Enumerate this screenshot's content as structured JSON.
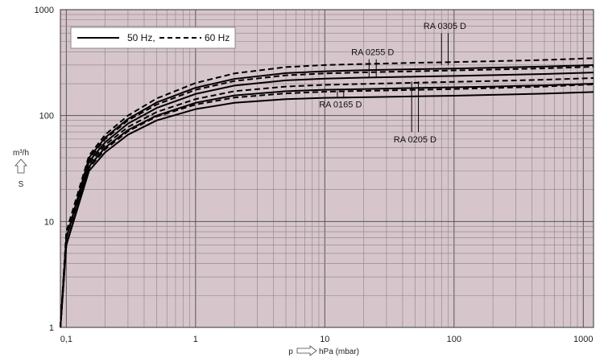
{
  "chart_data": {
    "type": "line",
    "title": "",
    "xlabel": "p",
    "xunit": "hPa (mbar)",
    "ylabel": "S",
    "yunit": "m³/h",
    "xscale": "log",
    "yscale": "log",
    "xlim": [
      0.09,
      1200
    ],
    "ylim": [
      1,
      1000
    ],
    "x_ticks": [
      {
        "value": 0.1,
        "label": "0,1"
      },
      {
        "value": 1,
        "label": "1"
      },
      {
        "value": 10,
        "label": "10"
      },
      {
        "value": 100,
        "label": "100"
      },
      {
        "value": 1000,
        "label": "1000"
      }
    ],
    "y_ticks": [
      {
        "value": 1,
        "label": "1"
      },
      {
        "value": 10,
        "label": "10"
      },
      {
        "value": 100,
        "label": "100"
      },
      {
        "value": 1000,
        "label": "1000"
      }
    ],
    "grid": true,
    "background": "#d6c6cb",
    "legend": {
      "position": "top-left",
      "entries": [
        {
          "label": "50 Hz,",
          "style": "solid"
        },
        {
          "label": "60 Hz",
          "style": "dashed"
        }
      ]
    },
    "series": [
      {
        "name": "RA 0165 D 50 Hz",
        "style": "solid",
        "x": [
          0.09,
          0.1,
          0.15,
          0.2,
          0.3,
          0.5,
          1,
          2,
          5,
          10,
          20,
          50,
          100,
          200,
          500,
          1200
        ],
        "y": [
          1,
          6,
          30,
          45,
          66,
          90,
          115,
          132,
          143,
          147,
          149,
          152,
          154,
          157,
          161,
          167
        ]
      },
      {
        "name": "RA 0165 D 60 Hz",
        "style": "dashed",
        "x": [
          0.09,
          0.1,
          0.15,
          0.2,
          0.3,
          0.5,
          1,
          2,
          5,
          10,
          20,
          50,
          100,
          200,
          500,
          1200
        ],
        "y": [
          1,
          6,
          32,
          48,
          71,
          98,
          127,
          148,
          162,
          168,
          171,
          175,
          178,
          182,
          188,
          197
        ]
      },
      {
        "name": "RA 0205 D 50 Hz",
        "style": "solid",
        "x": [
          0.09,
          0.1,
          0.15,
          0.2,
          0.3,
          0.5,
          1,
          2,
          5,
          10,
          20,
          50,
          100,
          200,
          500,
          1200
        ],
        "y": [
          1,
          6,
          33,
          50,
          73,
          100,
          132,
          155,
          170,
          175,
          178,
          182,
          185,
          188,
          193,
          200
        ]
      },
      {
        "name": "RA 0205 D 60 Hz",
        "style": "dashed",
        "x": [
          0.09,
          0.1,
          0.15,
          0.2,
          0.3,
          0.5,
          1,
          2,
          5,
          10,
          20,
          50,
          100,
          200,
          500,
          1200
        ],
        "y": [
          1,
          7,
          35,
          53,
          78,
          108,
          143,
          170,
          188,
          195,
          199,
          204,
          208,
          212,
          218,
          226
        ]
      },
      {
        "name": "RA 0255 D 50 Hz",
        "style": "solid",
        "x": [
          0.09,
          0.1,
          0.15,
          0.2,
          0.3,
          0.5,
          1,
          2,
          5,
          10,
          20,
          50,
          100,
          200,
          500,
          1200
        ],
        "y": [
          1,
          7,
          37,
          56,
          84,
          118,
          160,
          192,
          215,
          223,
          228,
          233,
          237,
          241,
          247,
          255
        ]
      },
      {
        "name": "RA 0255 D 60 Hz",
        "style": "dashed",
        "x": [
          0.09,
          0.1,
          0.15,
          0.2,
          0.3,
          0.5,
          1,
          2,
          5,
          10,
          20,
          50,
          100,
          200,
          500,
          1200
        ],
        "y": [
          1,
          7,
          39,
          60,
          90,
          127,
          175,
          212,
          240,
          250,
          256,
          262,
          267,
          272,
          279,
          289
        ]
      },
      {
        "name": "RA 0305 D 50 Hz",
        "style": "solid",
        "x": [
          0.09,
          0.1,
          0.15,
          0.2,
          0.3,
          0.5,
          1,
          2,
          5,
          10,
          20,
          50,
          100,
          200,
          500,
          1200
        ],
        "y": [
          1,
          7,
          40,
          62,
          93,
          133,
          183,
          222,
          252,
          262,
          268,
          274,
          278,
          283,
          290,
          300
        ]
      },
      {
        "name": "RA 0305 D 60 Hz",
        "style": "dashed",
        "x": [
          0.09,
          0.1,
          0.15,
          0.2,
          0.3,
          0.5,
          1,
          2,
          5,
          10,
          20,
          50,
          100,
          200,
          500,
          1200
        ],
        "y": [
          1,
          8,
          42,
          66,
          100,
          145,
          203,
          250,
          287,
          300,
          307,
          315,
          320,
          326,
          335,
          348
        ]
      }
    ],
    "annotations": [
      {
        "text": "RA 0255 D",
        "leader_x": [
          22,
          25
        ],
        "leader_y": [
          230,
          340
        ]
      },
      {
        "text": "RA 0305 D",
        "leader_x": [
          80,
          90
        ],
        "leader_y": [
          300,
          600
        ]
      },
      {
        "text": "RA 0165 D",
        "leader_x": [
          12.5,
          14
        ],
        "leader_y": [
          150,
          170
        ]
      },
      {
        "text": "RA 0205 D",
        "leader_x": [
          47,
          53
        ],
        "leader_y": [
          70,
          210
        ]
      }
    ]
  }
}
